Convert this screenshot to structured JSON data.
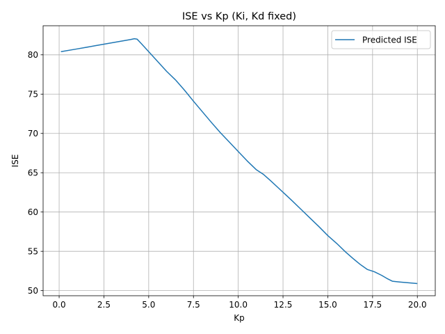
{
  "chart_data": {
    "type": "line",
    "title": "ISE vs Kp (Ki, Kd fixed)",
    "xlabel": "Kp",
    "ylabel": "ISE",
    "xlim": [
      -0.895,
      21.0
    ],
    "ylim": [
      49.35,
      83.7
    ],
    "xticks": [
      0.0,
      2.5,
      5.0,
      7.5,
      10.0,
      12.5,
      15.0,
      17.5,
      20.0
    ],
    "xtick_labels": [
      "0.0",
      "2.5",
      "5.0",
      "7.5",
      "10.0",
      "12.5",
      "15.0",
      "17.5",
      "20.0"
    ],
    "yticks": [
      50,
      55,
      60,
      65,
      70,
      75,
      80
    ],
    "ytick_labels": [
      "50",
      "55",
      "60",
      "65",
      "70",
      "75",
      "80"
    ],
    "grid": true,
    "legend_position": "upper right",
    "series": [
      {
        "name": "Predicted ISE",
        "color": "#1f77b4",
        "x": [
          0.1,
          1.0,
          2.0,
          3.0,
          4.0,
          4.2,
          4.35,
          4.6,
          5.0,
          5.5,
          6.0,
          6.5,
          7.0,
          7.5,
          8.0,
          8.5,
          9.0,
          9.5,
          10.0,
          10.5,
          11.0,
          11.4,
          11.8,
          12.2,
          12.6,
          13.0,
          13.5,
          14.0,
          14.5,
          15.0,
          15.5,
          16.0,
          16.4,
          16.8,
          17.2,
          17.6,
          18.0,
          18.3,
          18.6,
          19.0,
          19.5,
          20.0
        ],
        "y": [
          80.4,
          80.75,
          81.15,
          81.55,
          81.95,
          82.05,
          82.0,
          81.4,
          80.4,
          79.15,
          77.9,
          76.8,
          75.5,
          74.1,
          72.75,
          71.4,
          70.1,
          68.9,
          67.7,
          66.5,
          65.4,
          64.8,
          64.0,
          63.15,
          62.3,
          61.45,
          60.35,
          59.25,
          58.15,
          57.0,
          56.0,
          54.9,
          54.1,
          53.35,
          52.7,
          52.4,
          51.95,
          51.55,
          51.2,
          51.1,
          51.0,
          50.9
        ]
      }
    ]
  }
}
